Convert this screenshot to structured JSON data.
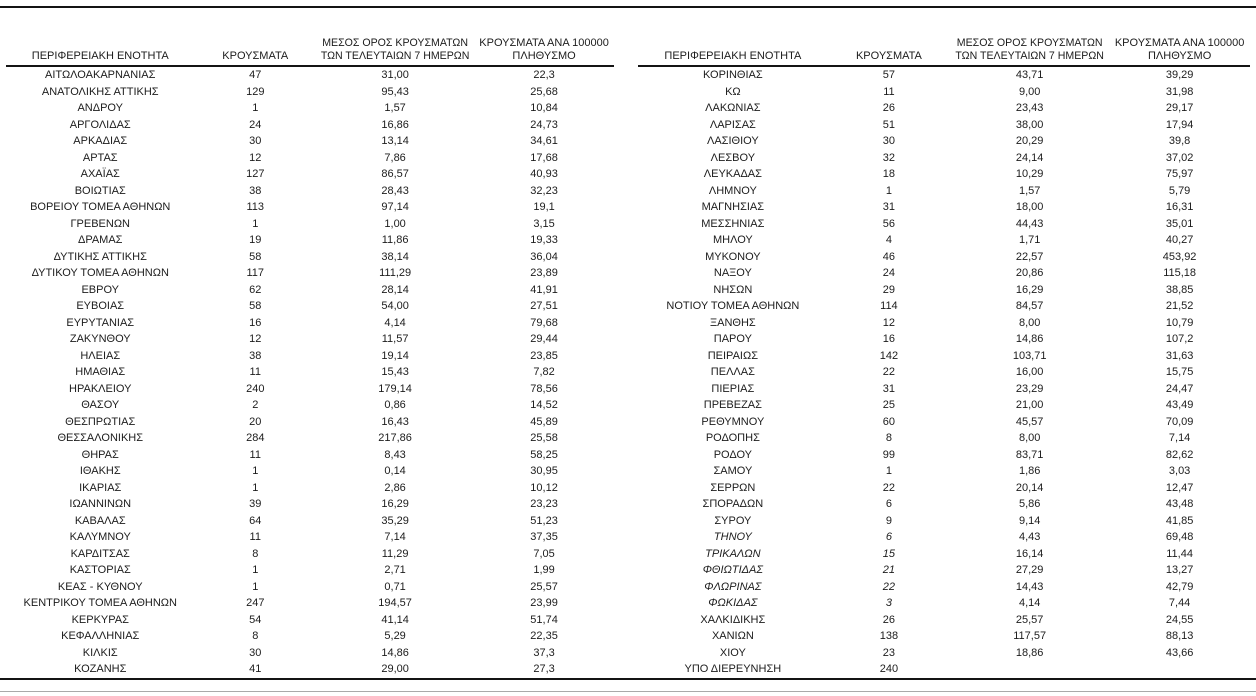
{
  "page": {
    "kind": "epidemiological-report-table",
    "language": "el",
    "colors": {
      "background": "#ffffff",
      "text": "#1c1c1c",
      "rule_dark": "#141414",
      "rule_light": "#a9a9a9"
    }
  },
  "tables": [
    {
      "name": "left",
      "headers": [
        "ΠΕΡΙΦΕΡΕΙΑΚΗ ΕΝΟΤΗΤΑ",
        "ΚΡΟΥΣΜΑΤΑ",
        "ΜΕΣΟΣ ΟΡΟΣ ΚΡΟΥΣΜΑΤΩΝ\nΤΩΝ ΤΕΛΕΥΤΑΙΩΝ 7 ΗΜΕΡΩΝ",
        "ΚΡΟΥΣΜΑΤΑ ΑΝΑ 100000\nΠΛΗΘΥΣΜΟ"
      ],
      "italic_rows": [],
      "rows": [
        [
          "ΑΙΤΩΛΟΑΚΑΡΝΑΝΙΑΣ",
          "47",
          "31,00",
          "22,3"
        ],
        [
          "ΑΝΑΤΟΛΙΚΗΣ ΑΤΤΙΚΗΣ",
          "129",
          "95,43",
          "25,68"
        ],
        [
          "ΑΝΔΡΟΥ",
          "1",
          "1,57",
          "10,84"
        ],
        [
          "ΑΡΓΟΛΙΔΑΣ",
          "24",
          "16,86",
          "24,73"
        ],
        [
          "ΑΡΚΑΔΙΑΣ",
          "30",
          "13,14",
          "34,61"
        ],
        [
          "ΑΡΤΑΣ",
          "12",
          "7,86",
          "17,68"
        ],
        [
          "ΑΧΑΪΑΣ",
          "127",
          "86,57",
          "40,93"
        ],
        [
          "ΒΟΙΩΤΙΑΣ",
          "38",
          "28,43",
          "32,23"
        ],
        [
          "ΒΟΡΕΙΟΥ ΤΟΜΕΑ ΑΘΗΝΩΝ",
          "113",
          "97,14",
          "19,1"
        ],
        [
          "ΓΡΕΒΕΝΩΝ",
          "1",
          "1,00",
          "3,15"
        ],
        [
          "ΔΡΑΜΑΣ",
          "19",
          "11,86",
          "19,33"
        ],
        [
          "ΔΥΤΙΚΗΣ ΑΤΤΙΚΗΣ",
          "58",
          "38,14",
          "36,04"
        ],
        [
          "ΔΥΤΙΚΟΥ ΤΟΜΕΑ ΑΘΗΝΩΝ",
          "117",
          "111,29",
          "23,89"
        ],
        [
          "ΕΒΡΟΥ",
          "62",
          "28,14",
          "41,91"
        ],
        [
          "ΕΥΒΟΙΑΣ",
          "58",
          "54,00",
          "27,51"
        ],
        [
          "ΕΥΡΥΤΑΝΙΑΣ",
          "16",
          "4,14",
          "79,68"
        ],
        [
          "ΖΑΚΥΝΘΟΥ",
          "12",
          "11,57",
          "29,44"
        ],
        [
          "ΗΛΕΙΑΣ",
          "38",
          "19,14",
          "23,85"
        ],
        [
          "ΗΜΑΘΙΑΣ",
          "11",
          "15,43",
          "7,82"
        ],
        [
          "ΗΡΑΚΛΕΙΟΥ",
          "240",
          "179,14",
          "78,56"
        ],
        [
          "ΘΑΣΟΥ",
          "2",
          "0,86",
          "14,52"
        ],
        [
          "ΘΕΣΠΡΩΤΙΑΣ",
          "20",
          "16,43",
          "45,89"
        ],
        [
          "ΘΕΣΣΑΛΟΝΙΚΗΣ",
          "284",
          "217,86",
          "25,58"
        ],
        [
          "ΘΗΡΑΣ",
          "11",
          "8,43",
          "58,25"
        ],
        [
          "ΙΘΑΚΗΣ",
          "1",
          "0,14",
          "30,95"
        ],
        [
          "ΙΚΑΡΙΑΣ",
          "1",
          "2,86",
          "10,12"
        ],
        [
          "ΙΩΑΝΝΙΝΩΝ",
          "39",
          "16,29",
          "23,23"
        ],
        [
          "ΚΑΒΑΛΑΣ",
          "64",
          "35,29",
          "51,23"
        ],
        [
          "ΚΑΛΥΜΝΟΥ",
          "11",
          "7,14",
          "37,35"
        ],
        [
          "ΚΑΡΔΙΤΣΑΣ",
          "8",
          "11,29",
          "7,05"
        ],
        [
          "ΚΑΣΤΟΡΙΑΣ",
          "1",
          "2,71",
          "1,99"
        ],
        [
          "ΚΕΑΣ - ΚΥΘΝΟΥ",
          "1",
          "0,71",
          "25,57"
        ],
        [
          "ΚΕΝΤΡΙΚΟΥ ΤΟΜΕΑ ΑΘΗΝΩΝ",
          "247",
          "194,57",
          "23,99"
        ],
        [
          "ΚΕΡΚΥΡΑΣ",
          "54",
          "41,14",
          "51,74"
        ],
        [
          "ΚΕΦΑΛΛΗΝΙΑΣ",
          "8",
          "5,29",
          "22,35"
        ],
        [
          "ΚΙΛΚΙΣ",
          "30",
          "14,86",
          "37,3"
        ],
        [
          "ΚΟΖΑΝΗΣ",
          "41",
          "29,00",
          "27,3"
        ]
      ]
    },
    {
      "name": "right",
      "headers": [
        "ΠΕΡΙΦΕΡΕΙΑΚΗ ΕΝΟΤΗΤΑ",
        "ΚΡΟΥΣΜΑΤΑ",
        "ΜΕΣΟΣ ΟΡΟΣ ΚΡΟΥΣΜΑΤΩΝ\nΤΩΝ ΤΕΛΕΥΤΑΙΩΝ 7 ΗΜΕΡΩΝ",
        "ΚΡΟΥΣΜΑΤΑ ΑΝΑ 100000\nΠΛΗΘΥΣΜΟ"
      ],
      "italic_rows": [
        28,
        29,
        30,
        31,
        32
      ],
      "rows": [
        [
          "ΚΟΡΙΝΘΙΑΣ",
          "57",
          "43,71",
          "39,29"
        ],
        [
          "ΚΩ",
          "11",
          "9,00",
          "31,98"
        ],
        [
          "ΛΑΚΩΝΙΑΣ",
          "26",
          "23,43",
          "29,17"
        ],
        [
          "ΛΑΡΙΣΑΣ",
          "51",
          "38,00",
          "17,94"
        ],
        [
          "ΛΑΣΙΘΙΟΥ",
          "30",
          "20,29",
          "39,8"
        ],
        [
          "ΛΕΣΒΟΥ",
          "32",
          "24,14",
          "37,02"
        ],
        [
          "ΛΕΥΚΑΔΑΣ",
          "18",
          "10,29",
          "75,97"
        ],
        [
          "ΛΗΜΝΟΥ",
          "1",
          "1,57",
          "5,79"
        ],
        [
          "ΜΑΓΝΗΣΙΑΣ",
          "31",
          "18,00",
          "16,31"
        ],
        [
          "ΜΕΣΣΗΝΙΑΣ",
          "56",
          "44,43",
          "35,01"
        ],
        [
          "ΜΗΛΟΥ",
          "4",
          "1,71",
          "40,27"
        ],
        [
          "ΜΥΚΟΝΟΥ",
          "46",
          "22,57",
          "453,92"
        ],
        [
          "ΝΑΞΟΥ",
          "24",
          "20,86",
          "115,18"
        ],
        [
          "ΝΗΣΩΝ",
          "29",
          "16,29",
          "38,85"
        ],
        [
          "ΝΟΤΙΟΥ ΤΟΜΕΑ ΑΘΗΝΩΝ",
          "114",
          "84,57",
          "21,52"
        ],
        [
          "ΞΑΝΘΗΣ",
          "12",
          "8,00",
          "10,79"
        ],
        [
          "ΠΑΡΟΥ",
          "16",
          "14,86",
          "107,2"
        ],
        [
          "ΠΕΙΡΑΙΩΣ",
          "142",
          "103,71",
          "31,63"
        ],
        [
          "ΠΕΛΛΑΣ",
          "22",
          "16,00",
          "15,75"
        ],
        [
          "ΠΙΕΡΙΑΣ",
          "31",
          "23,29",
          "24,47"
        ],
        [
          "ΠΡΕΒΕΖΑΣ",
          "25",
          "21,00",
          "43,49"
        ],
        [
          "ΡΕΘΥΜΝΟΥ",
          "60",
          "45,57",
          "70,09"
        ],
        [
          "ΡΟΔΟΠΗΣ",
          "8",
          "8,00",
          "7,14"
        ],
        [
          "ΡΟΔΟΥ",
          "99",
          "83,71",
          "82,62"
        ],
        [
          "ΣΑΜΟΥ",
          "1",
          "1,86",
          "3,03"
        ],
        [
          "ΣΕΡΡΩΝ",
          "22",
          "20,14",
          "12,47"
        ],
        [
          "ΣΠΟΡΑΔΩΝ",
          "6",
          "5,86",
          "43,48"
        ],
        [
          "ΣΥΡΟΥ",
          "9",
          "9,14",
          "41,85"
        ],
        [
          "ΤΗΝΟΥ",
          "6",
          "4,43",
          "69,48"
        ],
        [
          "ΤΡΙΚΑΛΩΝ",
          "15",
          "16,14",
          "11,44"
        ],
        [
          "ΦΘΙΩΤΙΔΑΣ",
          "21",
          "27,29",
          "13,27"
        ],
        [
          "ΦΛΩΡΙΝΑΣ",
          "22",
          "14,43",
          "42,79"
        ],
        [
          "ΦΩΚΙΔΑΣ",
          "3",
          "4,14",
          "7,44"
        ],
        [
          "ΧΑΛΚΙΔΙΚΗΣ",
          "26",
          "25,57",
          "24,55"
        ],
        [
          "ΧΑΝΙΩΝ",
          "138",
          "117,57",
          "88,13"
        ],
        [
          "ΧΙΟΥ",
          "23",
          "18,86",
          "43,66"
        ],
        [
          "ΥΠΟ ΔΙΕΡΕΥΝΗΣΗ",
          "240",
          "",
          ""
        ]
      ]
    }
  ]
}
